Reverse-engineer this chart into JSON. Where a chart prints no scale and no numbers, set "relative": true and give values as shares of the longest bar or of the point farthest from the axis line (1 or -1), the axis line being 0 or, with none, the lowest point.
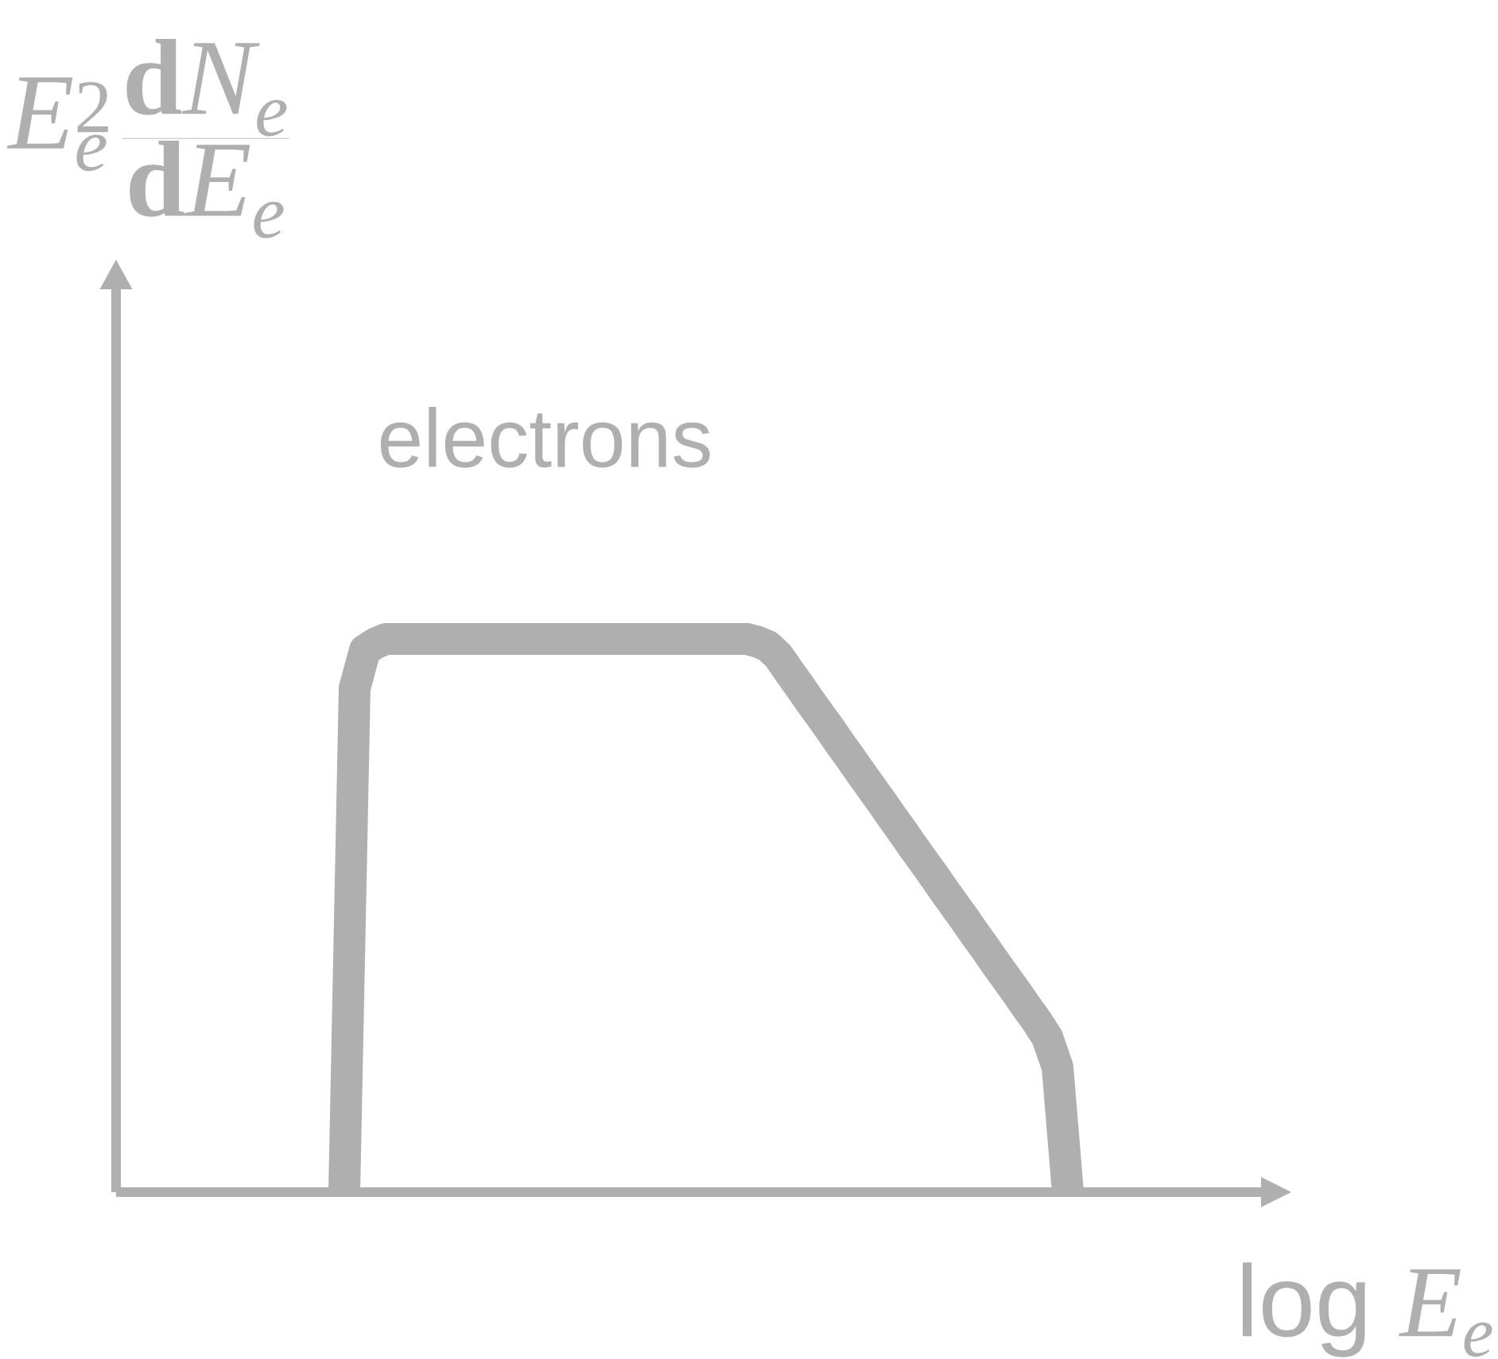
{
  "chart_data": {
    "type": "line",
    "relative": true,
    "annotations": [
      "E_e^2\\,\\frac{\\mathrm{d}N_e}{\\mathrm{d}E_e}",
      "\\mathsf{log}\\ E_e"
    ],
    "categories": [
      null,
      null,
      null,
      null,
      null,
      null,
      null,
      null,
      null,
      null,
      null,
      null,
      null,
      null,
      null,
      null,
      null,
      null,
      null,
      null,
      null,
      null,
      null,
      null,
      null,
      null,
      null,
      null,
      null,
      null,
      null,
      null,
      null,
      null,
      null,
      null,
      null,
      null,
      null,
      null,
      null,
      null,
      null,
      null,
      null,
      null,
      null,
      null,
      null,
      null,
      null,
      null,
      null,
      null,
      null,
      null,
      null,
      null,
      null,
      null,
      null,
      null,
      null,
      null,
      null,
      null,
      null,
      null,
      null,
      null,
      null
    ],
    "series": [
      {
        "name": "electrons",
        "color": "#afafaf",
        "values": [
          0,
          0.911,
          0.98,
          0.992,
          1,
          1,
          1,
          1,
          1,
          1,
          1,
          1,
          1,
          1,
          1,
          1,
          1,
          1,
          1,
          1,
          1,
          1,
          1,
          1,
          1,
          1,
          1,
          1,
          1,
          1,
          1,
          1,
          1,
          1,
          1,
          1,
          1,
          1,
          1,
          1,
          0.995,
          0.987,
          0.969,
          0.942,
          0.916,
          0.889,
          0.863,
          0.837,
          0.81,
          0.784,
          0.757,
          0.731,
          0.705,
          0.678,
          0.652,
          0.625,
          0.599,
          0.573,
          0.546,
          0.52,
          0.494,
          0.467,
          0.441,
          0.414,
          0.388,
          0.362,
          0.335,
          0.309,
          0.28,
          0.226,
          0
        ]
      }
    ],
    "line_style": "solid"
  }
}
